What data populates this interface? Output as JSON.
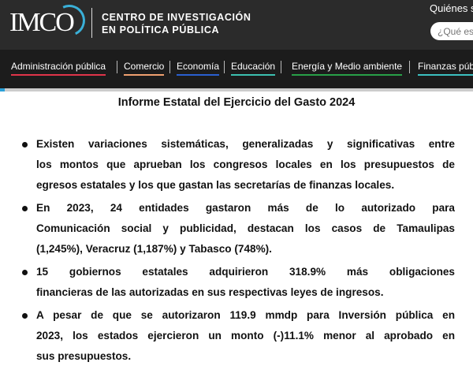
{
  "header": {
    "logo": "IMCO",
    "org_line1": "CENTRO DE INVESTIGACIÓN",
    "org_line2": "EN POLÍTICA PÚBLICA",
    "who_link": "Quiénes s",
    "search_placeholder": "¿Qué est"
  },
  "nav": [
    {
      "label": "Administración pública",
      "color": "#e0344a"
    },
    {
      "label": "Comercio",
      "color": "#f0a070"
    },
    {
      "label": "Economía",
      "color": "#2a5fd0"
    },
    {
      "label": "Educación",
      "color": "#3cc0b0"
    },
    {
      "label": "Energía y Medio ambiente",
      "color": "#28a048"
    },
    {
      "label": "Finanzas públ",
      "color": "#3cc0c0"
    }
  ],
  "title": "Informe Estatal del Ejercicio del Gasto 2024",
  "bullets": [
    [
      "Existen variaciones sistemáticas, generalizadas y significativas entre",
      "los montos que aprueban los congresos locales en los presupuestos de",
      "egresos estatales y los que gastan las secretarías de finanzas locales."
    ],
    [
      "En 2023, 24 entidades gastaron más de lo autorizado para",
      "Comunicación social y publicidad, destacan los casos de Tamaulipas",
      "(1,245%), Veracruz (1,187%) y Tabasco (748%)."
    ],
    [
      "15 gobiernos estatales adquirieron 318.9% más obligaciones",
      "financieras de las autorizadas en sus respectivas leyes de ingresos."
    ],
    [
      "A pesar de que se autorizaron 119.9 mmdp para Inversión pública en",
      "2023, los estados ejercieron un monto (-)11.1% menor al aprobado en",
      "sus presupuestos."
    ]
  ]
}
